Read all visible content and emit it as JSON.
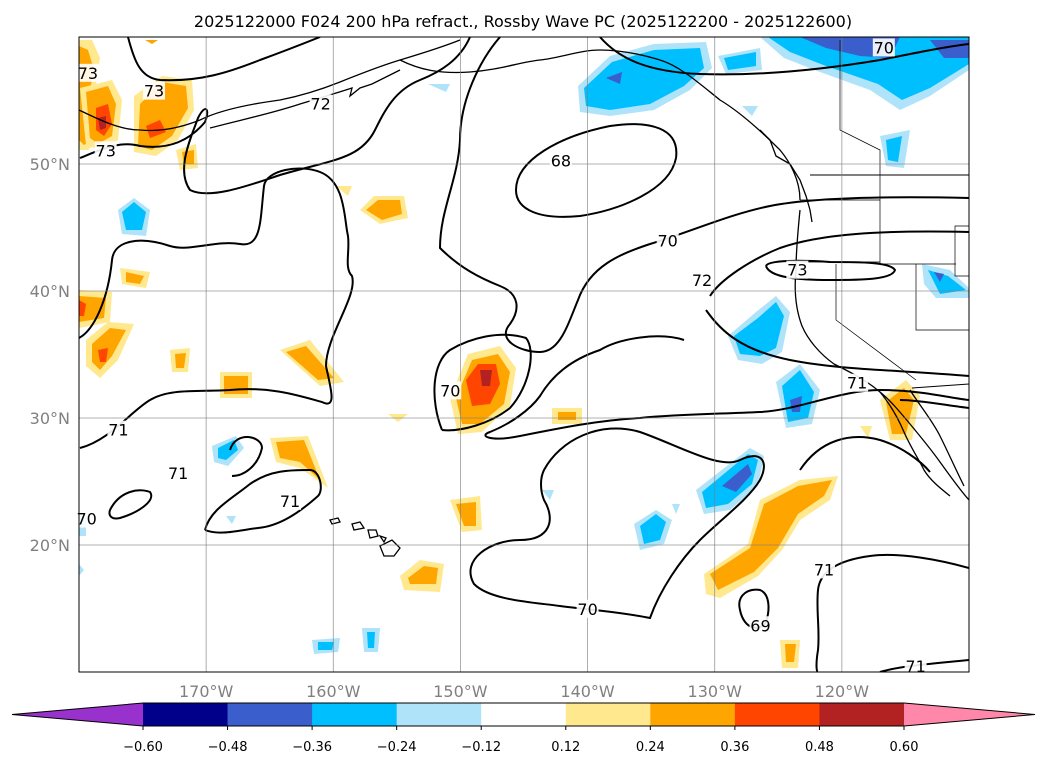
{
  "chart_data": {
    "type": "heatmap",
    "title": "2025122000 F024 200 hPa refract., Rossby Wave PC (2025122200 - 2025122600)",
    "projection": "PlateCarree",
    "lon_range": [
      -180,
      -110
    ],
    "lat_range": [
      10,
      60
    ],
    "lon_ticks": [
      {
        "lon": -170,
        "label": "170°W"
      },
      {
        "lon": -160,
        "label": "160°W"
      },
      {
        "lon": -150,
        "label": "150°W"
      },
      {
        "lon": -140,
        "label": "140°W"
      },
      {
        "lon": -130,
        "label": "130°W"
      },
      {
        "lon": -120,
        "label": "120°W"
      }
    ],
    "lat_ticks": [
      {
        "lat": 20,
        "label": "20°N"
      },
      {
        "lat": 30,
        "label": "30°N"
      },
      {
        "lat": 40,
        "label": "40°N"
      },
      {
        "lat": 50,
        "label": "50°N"
      }
    ],
    "grid": true,
    "colorbar": {
      "orientation": "horizontal",
      "extend": "both",
      "bounds": [
        -0.6,
        -0.48,
        -0.36,
        -0.24,
        -0.12,
        0.12,
        0.24,
        0.36,
        0.48,
        0.6
      ],
      "tick_labels": [
        "−0.60",
        "−0.48",
        "−0.36",
        "−0.24",
        "−0.12",
        "0.12",
        "0.24",
        "0.36",
        "0.48",
        "0.60"
      ],
      "colors": [
        "#9932cc",
        "#00008b",
        "#3a5fcd",
        "#00bfff",
        "#aee3fa",
        "#ffffff",
        "#ffe88e",
        "#ffa500",
        "#ff4500",
        "#b22222",
        "#ff88aa"
      ]
    },
    "contour_labels": [
      {
        "text": "73",
        "lon": -179.3,
        "lat": 57.1
      },
      {
        "text": "73",
        "lon": -174.1,
        "lat": 55.7
      },
      {
        "text": "72",
        "lon": -161.0,
        "lat": 54.7
      },
      {
        "text": "73",
        "lon": -177.9,
        "lat": 51.0
      },
      {
        "text": "70",
        "lon": -116.7,
        "lat": 59.1
      },
      {
        "text": "68",
        "lon": -142.1,
        "lat": 50.2
      },
      {
        "text": "70",
        "lon": -133.7,
        "lat": 43.9
      },
      {
        "text": "73",
        "lon": -123.5,
        "lat": 41.6
      },
      {
        "text": "72",
        "lon": -131.0,
        "lat": 40.8
      },
      {
        "text": "70",
        "lon": -150.8,
        "lat": 32.1
      },
      {
        "text": "71",
        "lon": -176.9,
        "lat": 29.0
      },
      {
        "text": "71",
        "lon": -118.8,
        "lat": 32.7
      },
      {
        "text": "71",
        "lon": -172.2,
        "lat": 25.6
      },
      {
        "text": "71",
        "lon": -163.4,
        "lat": 23.4
      },
      {
        "text": "70",
        "lon": -179.4,
        "lat": 22.0
      },
      {
        "text": "70",
        "lon": -140.0,
        "lat": 14.9
      },
      {
        "text": "69",
        "lon": -126.4,
        "lat": 13.6
      },
      {
        "text": "71",
        "lon": -121.4,
        "lat": 18.0
      },
      {
        "text": "71",
        "lon": -114.2,
        "lat": 10.4
      }
    ],
    "shaded_regions": [
      {
        "name": "north-pacific-west-blobs",
        "sign": "positive",
        "max_value": 0.48,
        "lon": -177,
        "lat": 55
      },
      {
        "name": "subtropical-central-blob",
        "sign": "positive",
        "max_value": 0.48,
        "lon": -148,
        "lat": 33
      },
      {
        "name": "southwest-positive-band",
        "sign": "positive",
        "max_value": 0.36,
        "lon": -127,
        "lat": 20
      },
      {
        "name": "baja-positive",
        "sign": "positive",
        "max_value": 0.36,
        "lon": -115,
        "lat": 31
      },
      {
        "name": "alaska-gulf-negative",
        "sign": "negative",
        "min_value": -0.48,
        "lon": -140,
        "lat": 56
      },
      {
        "name": "canada-northeast-negative",
        "sign": "negative",
        "min_value": -0.48,
        "lon": -116,
        "lat": 58
      },
      {
        "name": "california-offshore-negative",
        "sign": "negative",
        "min_value": -0.48,
        "lon": -124,
        "lat": 31
      },
      {
        "name": "subtropical-negative-band",
        "sign": "negative",
        "min_value": -0.48,
        "lon": -130,
        "lat": 23
      }
    ]
  }
}
